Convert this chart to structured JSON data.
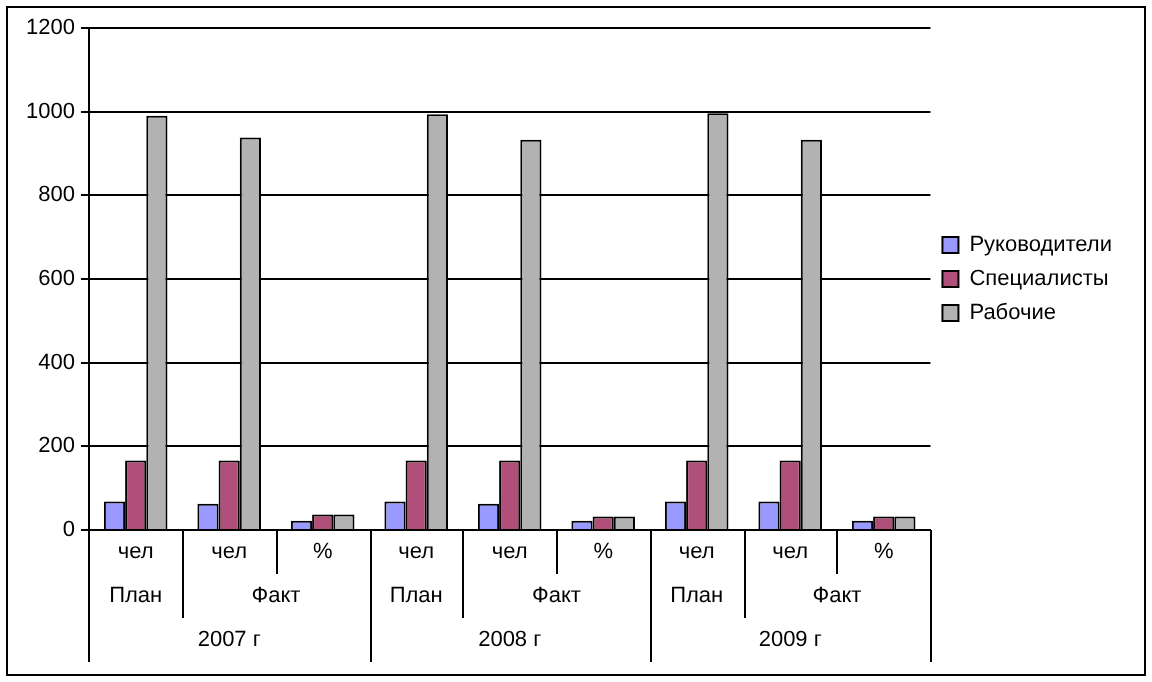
{
  "chart_data": {
    "type": "bar",
    "categories": [
      "чел",
      "чел",
      "%",
      "чел",
      "чел",
      "%",
      "чел",
      "чел",
      "%"
    ],
    "annotations": [
      "План",
      "Факт",
      "План",
      "Факт",
      "План",
      "Факт",
      "2007 г",
      "2008 г",
      "2009 г"
    ],
    "series": [
      {
        "name": "Руководители",
        "color": "#9999ff",
        "values": [
          68,
          63,
          22,
          68,
          63,
          22,
          68,
          68,
          22
        ]
      },
      {
        "name": "Специалисты",
        "color": "#b0507a",
        "values": [
          166,
          166,
          37,
          166,
          166,
          32,
          166,
          166,
          32
        ]
      },
      {
        "name": "Рабочие",
        "color": "#b2b2b2",
        "values": [
          990,
          938,
          37,
          994,
          933,
          32,
          996,
          933,
          32
        ]
      }
    ],
    "ylim": [
      0,
      1200
    ],
    "yticks": [
      0,
      200,
      400,
      600,
      800,
      1000,
      1200
    ],
    "grid": "y",
    "legend": "right"
  }
}
